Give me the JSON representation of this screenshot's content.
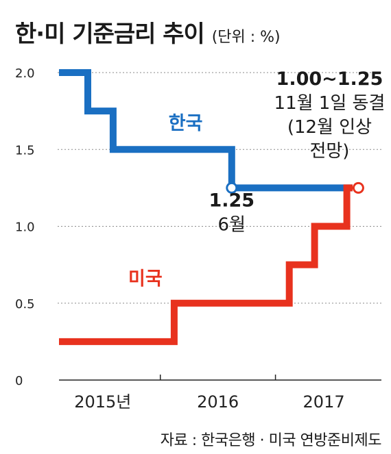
{
  "title": "한·미 기준금리 추이",
  "unit": "(단위 : %)",
  "source": "자료 : 한국은행 · 미국 연방준비제도",
  "chart_data": {
    "type": "line",
    "step": true,
    "ylim": [
      0,
      2.0
    ],
    "yticks": [
      "0",
      "0.5",
      "1.0",
      "1.5",
      "2.0"
    ],
    "ytick_values": [
      0,
      0.5,
      1.0,
      1.5,
      2.0
    ],
    "xlim": [
      2014.95,
      2017.75
    ],
    "xticks": [
      "2015년",
      "2016",
      "2017"
    ],
    "xtick_centers": [
      2015.33,
      2016.33,
      2017.25
    ],
    "xtick_marks": [
      2015.83,
      2016.83
    ],
    "grid": true,
    "series": [
      {
        "name": "한국",
        "color": "#1a6fc2",
        "points": [
          [
            2014.95,
            2.0
          ],
          [
            2015.2,
            2.0
          ],
          [
            2015.2,
            1.75
          ],
          [
            2015.42,
            1.75
          ],
          [
            2015.42,
            1.5
          ],
          [
            2016.45,
            1.5
          ],
          [
            2016.45,
            1.25
          ],
          [
            2017.5,
            1.25
          ]
        ],
        "markers": [
          [
            2016.45,
            1.25
          ]
        ]
      },
      {
        "name": "미국",
        "color": "#e8321e",
        "points": [
          [
            2014.95,
            0.25
          ],
          [
            2015.95,
            0.25
          ],
          [
            2015.95,
            0.5
          ],
          [
            2016.95,
            0.5
          ],
          [
            2016.95,
            0.75
          ],
          [
            2017.17,
            0.75
          ],
          [
            2017.17,
            1.0
          ],
          [
            2017.45,
            1.0
          ],
          [
            2017.45,
            1.25
          ],
          [
            2017.5,
            1.25
          ]
        ],
        "markers": [
          [
            2017.55,
            1.25
          ]
        ]
      }
    ],
    "series_labels": [
      {
        "text": "한국",
        "color": "#1a6fc2",
        "x": 2016.05,
        "y": 1.63
      },
      {
        "text": "미국",
        "color": "#e8321e",
        "x": 2015.7,
        "y": 0.62
      }
    ],
    "annotations": [
      {
        "lines": [
          "1.25",
          "6월"
        ],
        "bold_first": true,
        "x": 2016.45,
        "y": 1.13
      },
      {
        "lines": [
          "1.00~1.25",
          "11월 1일 동결",
          "(12월 인상",
          "전망)"
        ],
        "bold_first": true,
        "x": 2017.3,
        "y": 1.92
      }
    ]
  }
}
